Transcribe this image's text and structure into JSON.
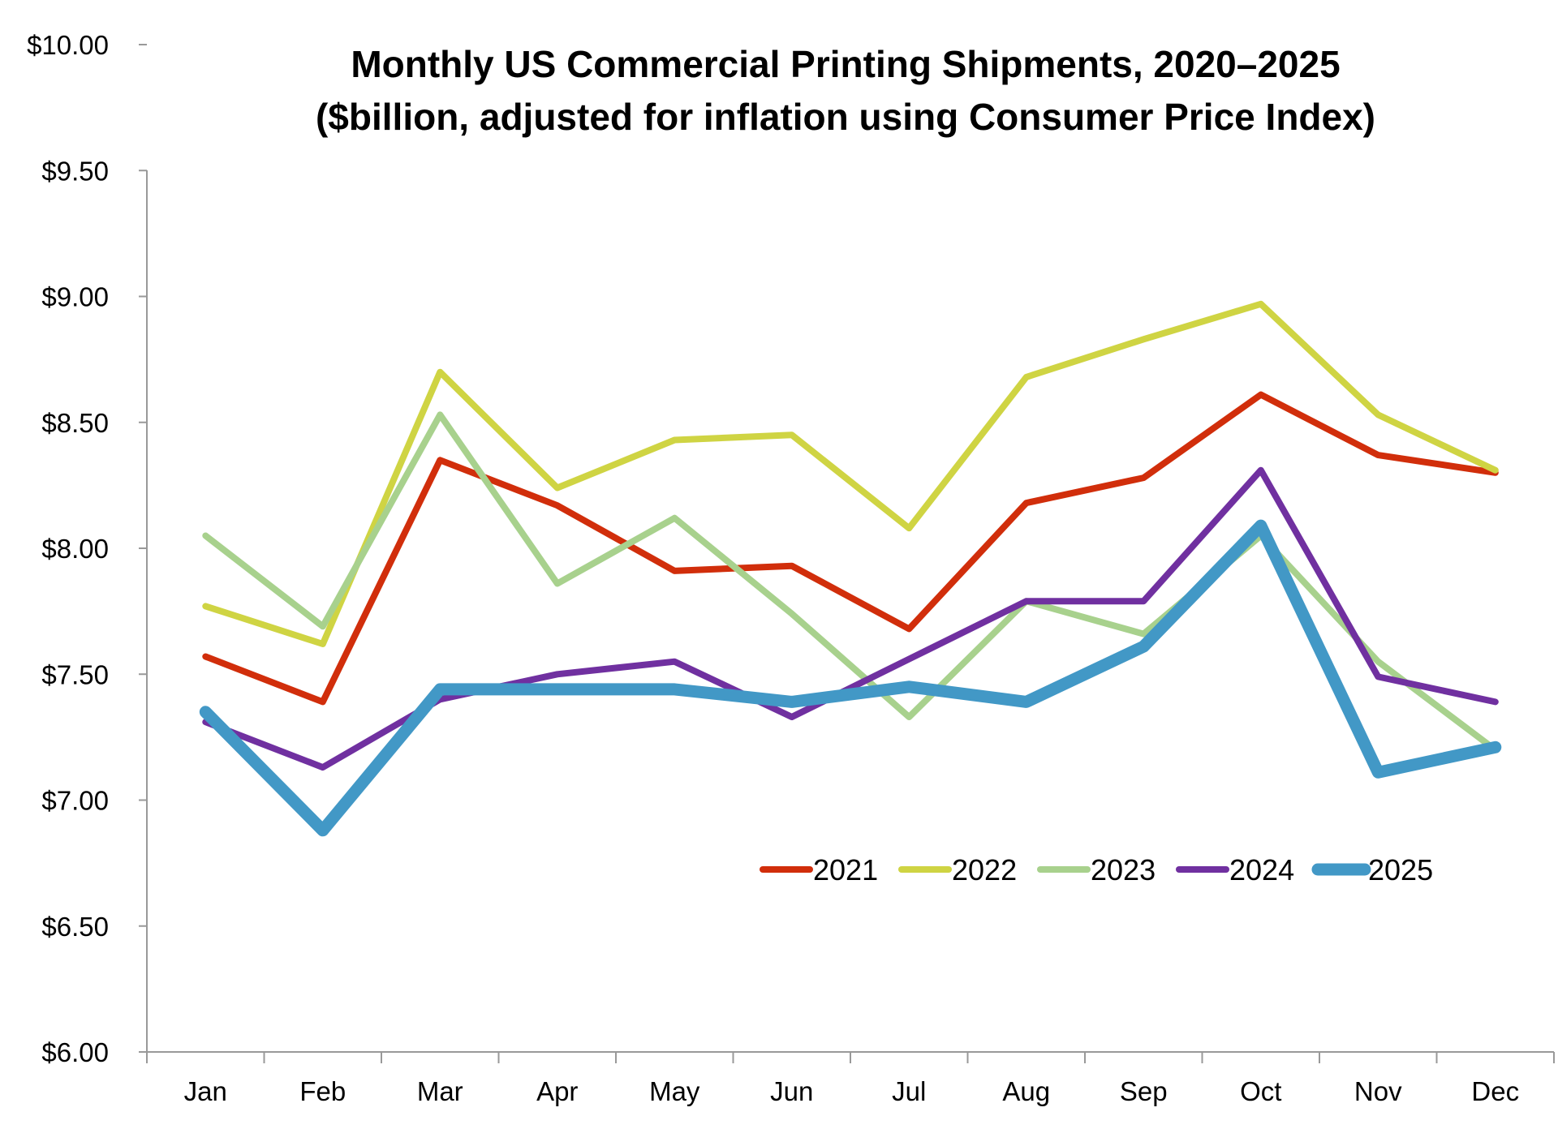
{
  "chart_data": {
    "type": "line",
    "title": "Monthly US Commercial Printing Shipments, 2020–2025",
    "subtitle": "($billion, adjusted for inflation using Consumer Price Index)",
    "xlabel": "",
    "ylabel": "",
    "categories": [
      "Jan",
      "Feb",
      "Mar",
      "Apr",
      "May",
      "Jun",
      "Jul",
      "Aug",
      "Sep",
      "Oct",
      "Nov",
      "Dec"
    ],
    "ylim": [
      6.0,
      10.0
    ],
    "yticks": [
      "$10.00",
      "$9.50",
      "$9.00",
      "$8.50",
      "$8.00",
      "$7.50",
      "$7.00",
      "$6.50",
      "$6.00"
    ],
    "ytick_values": [
      10.0,
      9.5,
      9.0,
      8.5,
      8.0,
      7.5,
      7.0,
      6.5,
      6.0
    ],
    "grid": false,
    "legend_position": "bottom-right",
    "series": [
      {
        "name": "2021",
        "color": "#D12E0B",
        "values": [
          7.57,
          7.39,
          8.35,
          8.17,
          7.91,
          7.93,
          7.68,
          8.18,
          8.28,
          8.61,
          8.37,
          8.3
        ]
      },
      {
        "name": "2022",
        "color": "#CFD443",
        "values": [
          7.77,
          7.62,
          8.7,
          8.24,
          8.43,
          8.45,
          8.08,
          8.68,
          8.83,
          8.97,
          8.53,
          8.31
        ]
      },
      {
        "name": "2023",
        "color": "#A8D18D",
        "values": [
          8.05,
          7.69,
          8.53,
          7.86,
          8.12,
          7.74,
          7.33,
          7.79,
          7.66,
          8.05,
          7.55,
          7.2
        ]
      },
      {
        "name": "2024",
        "color": "#7030A0",
        "values": [
          7.31,
          7.13,
          7.4,
          7.5,
          7.55,
          7.33,
          7.56,
          7.79,
          7.79,
          8.31,
          7.49,
          7.39
        ]
      },
      {
        "name": "2025",
        "color": "#4298C6",
        "values": [
          7.35,
          6.88,
          7.44,
          7.44,
          7.44,
          7.39,
          7.45,
          7.39,
          7.61,
          8.09,
          7.11,
          7.21
        ]
      }
    ]
  }
}
